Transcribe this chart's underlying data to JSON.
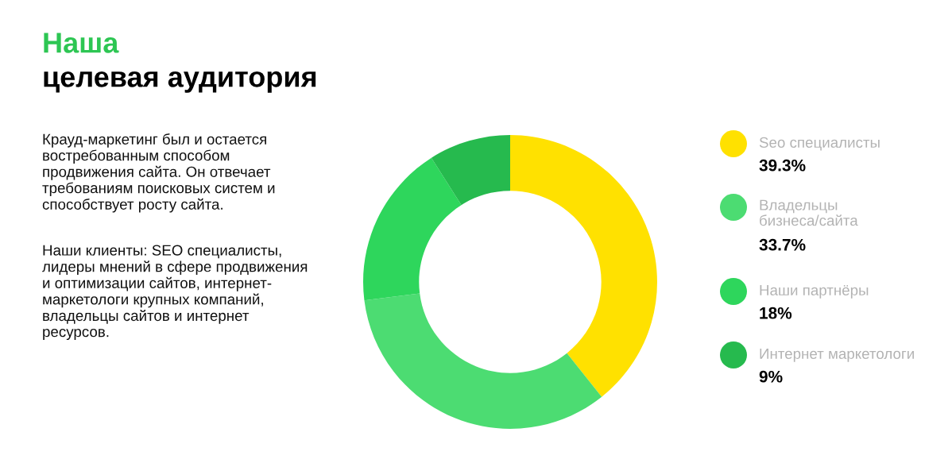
{
  "chart_data": {
    "type": "donut",
    "title": "Наша",
    "subtitle": "целевая аудитория",
    "annotations": [
      "Крауд-маркетинг был и остается\nвостребованным способом\nпродвижения сайта. Он отвечает\nтребованиям поисковых систем и\nспособствует росту сайта.",
      "Наши клиенты: SEO специалисты,\nлидеры мнений в сфере продвижения\nи оптимизации сайтов, интернет-\nмаркетологи крупных компаний,\nвладельцы сайтов и интернет\nресурсов."
    ],
    "categories": [
      "Seo специалисты",
      "Владельцы\nбизнеса/сайта",
      "Наши партнёры",
      "Интернет маркетологи"
    ],
    "values": [
      39.3,
      33.7,
      18,
      9
    ],
    "value_labels": [
      "39.3%",
      "33.7%",
      "18%",
      "9%"
    ],
    "colors": [
      "#ffe100",
      "#4cdc72",
      "#2ed65c",
      "#26ba4e"
    ],
    "legend": "right"
  }
}
